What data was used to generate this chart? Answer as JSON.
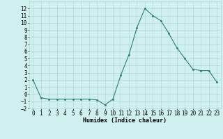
{
  "x": [
    0,
    1,
    2,
    3,
    4,
    5,
    6,
    7,
    8,
    9,
    10,
    11,
    12,
    13,
    14,
    15,
    16,
    17,
    18,
    19,
    20,
    21,
    22,
    23
  ],
  "y": [
    2,
    -0.5,
    -0.7,
    -0.7,
    -0.7,
    -0.7,
    -0.7,
    -0.7,
    -0.8,
    -1.5,
    -0.7,
    2.7,
    5.5,
    9.3,
    12.0,
    11.0,
    10.3,
    8.5,
    6.5,
    5.0,
    3.5,
    3.3,
    3.3,
    1.7
  ],
  "line_color": "#2e7d6e",
  "marker": ".",
  "marker_size": 3,
  "bg_color": "#cff0ef",
  "grid_color": "#b0d8d5",
  "xlabel": "Humidex (Indice chaleur)",
  "xlabel_fontsize": 6,
  "tick_fontsize": 5.5,
  "ylim": [
    -2,
    13
  ],
  "xlim": [
    -0.5,
    23.5
  ],
  "yticks": [
    -2,
    -1,
    0,
    1,
    2,
    3,
    4,
    5,
    6,
    7,
    8,
    9,
    10,
    11,
    12
  ],
  "xticks": [
    0,
    1,
    2,
    3,
    4,
    5,
    6,
    7,
    8,
    9,
    10,
    11,
    12,
    13,
    14,
    15,
    16,
    17,
    18,
    19,
    20,
    21,
    22,
    23
  ]
}
